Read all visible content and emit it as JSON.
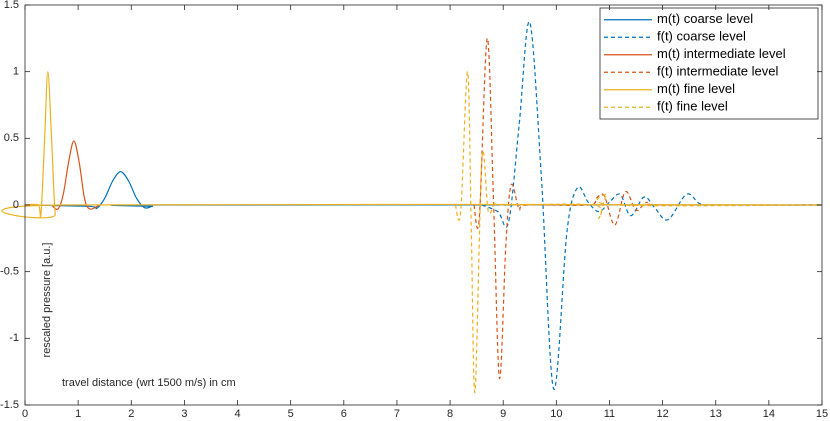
{
  "chart_data": {
    "type": "line",
    "xlabel": "travel distance (wrt 1500 m/s) in cm",
    "ylabel": "rescaled pressure [a.u.]",
    "xlim": [
      0,
      15
    ],
    "ylim": [
      -1.5,
      1.5
    ],
    "xticks": [
      0,
      1,
      2,
      3,
      4,
      5,
      6,
      7,
      8,
      9,
      10,
      11,
      12,
      13,
      14,
      15
    ],
    "yticks": [
      -1.5,
      -1,
      -0.5,
      0,
      0.5,
      1,
      1.5
    ],
    "grid": false,
    "legend": "top-right",
    "series": [
      {
        "name": "m(t) coarse level",
        "color": "#0072BD",
        "dash": false,
        "x": [
          0,
          1.2,
          1.35,
          1.5,
          1.65,
          1.8,
          1.95,
          2.1,
          2.25,
          2.4,
          2.6,
          15
        ],
        "values": [
          0,
          -0.01,
          -0.025,
          0.05,
          0.18,
          0.25,
          0.18,
          0.05,
          -0.02,
          -0.01,
          0,
          0
        ]
      },
      {
        "name": "f(t)  coarse level",
        "color": "#0072BD",
        "dash": true,
        "x": [
          8.6,
          8.9,
          9.1,
          9.3,
          9.5,
          9.72,
          9.95,
          10.2,
          10.4,
          10.6,
          10.8,
          11.0,
          11.2,
          11.4,
          11.65,
          11.85,
          12.1,
          12.45,
          12.7,
          13.0,
          15
        ],
        "values": [
          0,
          -0.05,
          -0.13,
          0.6,
          1.37,
          0.2,
          -1.38,
          -0.2,
          0.13,
          0.02,
          -0.05,
          0.02,
          0.08,
          -0.08,
          0.06,
          -0.02,
          -0.11,
          0.08,
          0.01,
          0,
          0
        ]
      },
      {
        "name": "m(t) intermediate level",
        "color": "#D95319",
        "dash": false,
        "x": [
          0.5,
          0.62,
          0.72,
          0.82,
          0.92,
          1.02,
          1.12,
          1.22,
          1.4
        ],
        "values": [
          0,
          -0.03,
          0.08,
          0.32,
          0.48,
          0.32,
          0.05,
          -0.03,
          0
        ]
      },
      {
        "name": "f(t)  intermediate level",
        "color": "#D95319",
        "dash": true,
        "x": [
          8.45,
          8.55,
          8.7,
          8.82,
          8.93,
          9.05,
          9.15,
          9.3,
          9.45,
          10.6,
          10.75,
          10.9,
          11.1,
          11.3,
          11.5,
          11.7,
          12.0,
          15
        ],
        "values": [
          0,
          -0.1,
          1.25,
          0.0,
          -1.3,
          -0.3,
          0.15,
          -0.03,
          0,
          0,
          0.05,
          0.07,
          -0.15,
          0.1,
          -0.04,
          0.02,
          0,
          0
        ]
      },
      {
        "name": "m(t) fine level",
        "color": "#EDB120",
        "dash": false,
        "x": [
          0,
          0.25,
          0.3,
          0.37,
          0.43,
          0.5,
          0.57,
          0.65,
          15
        ],
        "values": [
          0,
          0,
          -0.07,
          0.5,
          1.0,
          0.5,
          -0.07,
          0,
          0
        ]
      },
      {
        "name": "f(t)  fine level",
        "color": "#EDB120",
        "dash": true,
        "x": [
          8.1,
          8.2,
          8.33,
          8.4,
          8.47,
          8.6,
          8.72,
          8.85,
          9.0,
          10.7,
          10.8,
          10.95,
          11.1,
          15
        ],
        "values": [
          0,
          -0.05,
          1.0,
          -0.2,
          -1.4,
          0.35,
          -0.05,
          0.02,
          0,
          0,
          -0.1,
          0.08,
          0,
          0
        ]
      }
    ]
  }
}
